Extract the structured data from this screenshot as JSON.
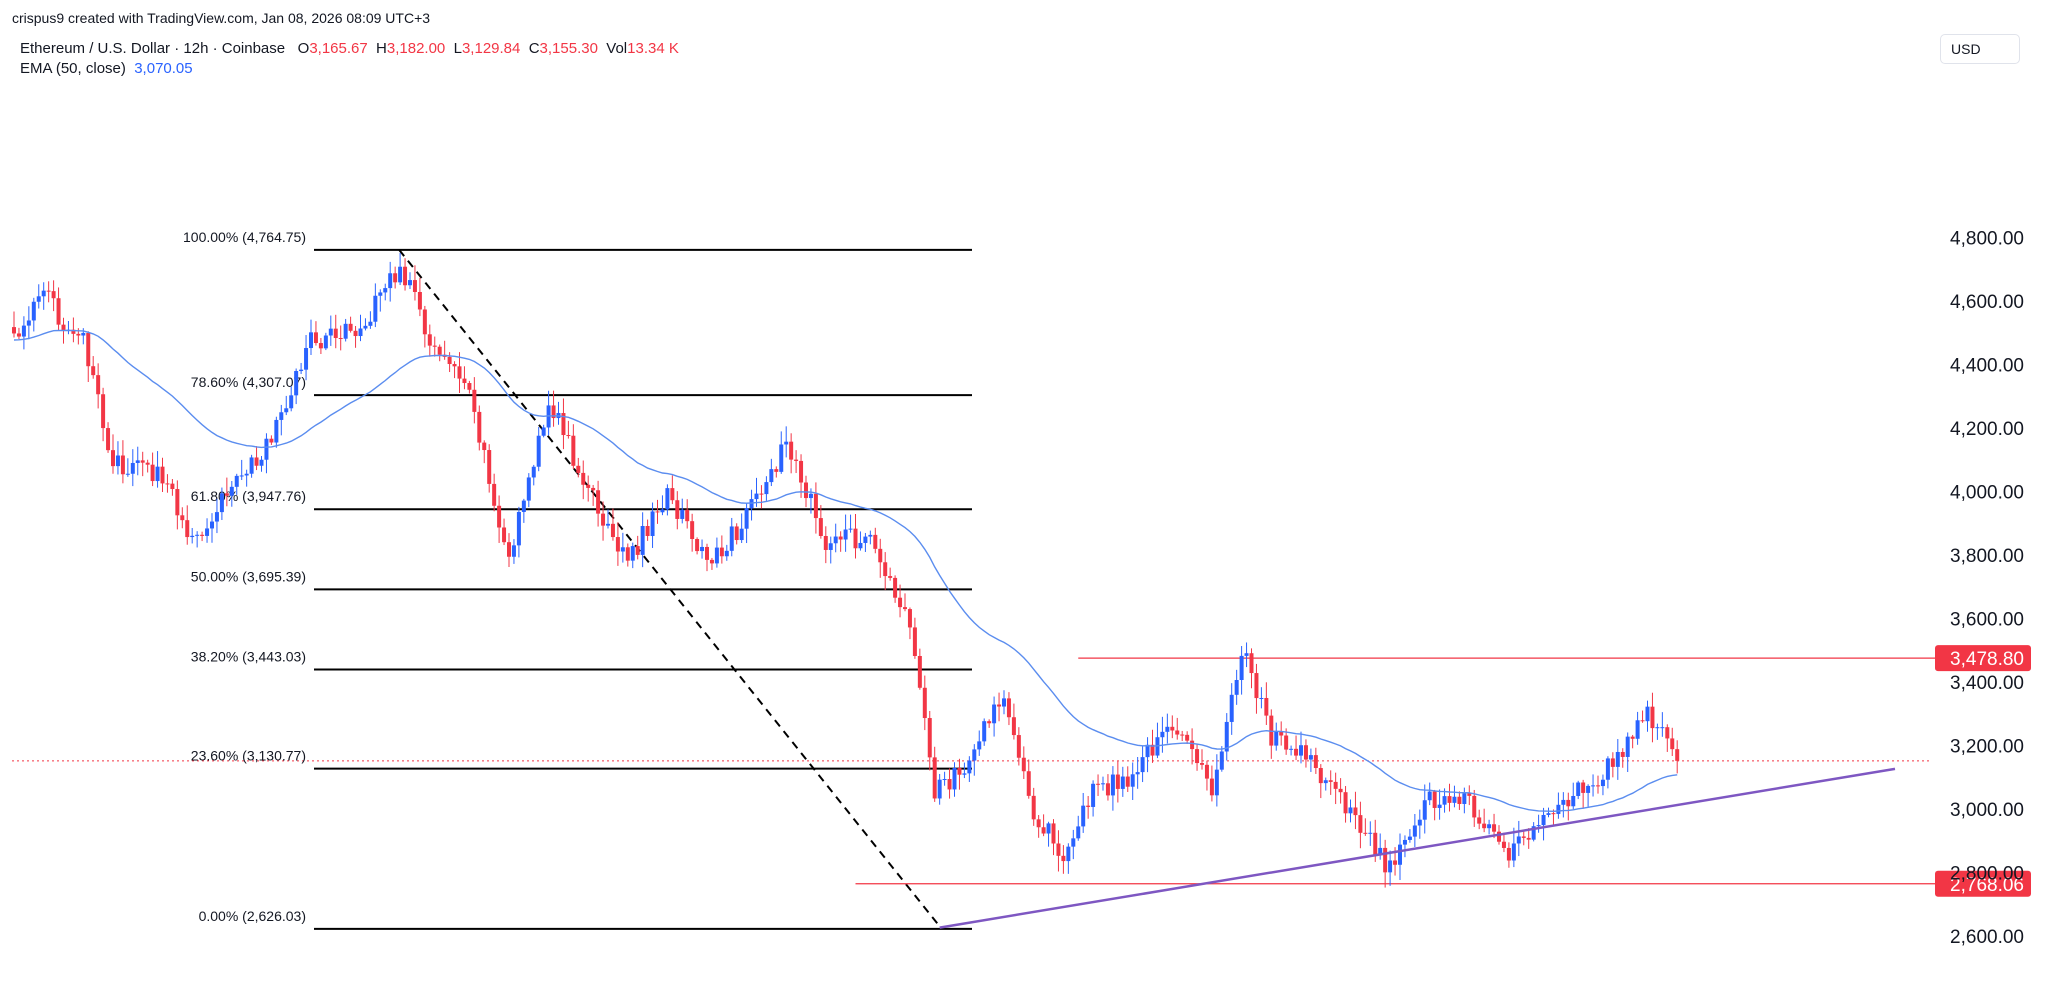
{
  "header": {
    "credit": "crispus9 created with TradingView.com, Jan 08, 2026 08:09 UTC+3",
    "symbol": "Ethereum / U.S. Dollar · 12h · Coinbase",
    "o_label": "O",
    "o_value": "3,165.67",
    "h_label": "H",
    "h_value": "3,182.00",
    "l_label": "L",
    "l_value": "3,129.84",
    "c_label": "C",
    "c_value": "3,155.30",
    "vol_label": "Vol",
    "vol_value": "13.34 K",
    "ema_label": "EMA (50, close)",
    "ema_value": "3,070.05"
  },
  "currency": "USD",
  "colors": {
    "up": "#2962ff",
    "down": "#f23645",
    "ema": "#5b8def",
    "fib": "#000000",
    "hline": "#f23645",
    "trend": "#7e57c2",
    "axis_text": "#131722"
  },
  "chart_data": {
    "type": "candlestick",
    "symbol": "ETH/USD",
    "interval": "12h",
    "ylim": [
      2550,
      4950
    ],
    "y_ticks": [
      4800,
      4600,
      4400,
      4200,
      4000,
      3800,
      3600,
      3400,
      3200,
      3000,
      2800,
      2600
    ],
    "y_tick_labels": [
      "4,800.00",
      "4,600.00",
      "4,400.00",
      "4,200.00",
      "4,000.00",
      "3,800.00",
      "3,600.00",
      "3,400.00",
      "3,200.00",
      "3,000.00",
      "2,800.00",
      "2,600.00"
    ],
    "last_price": 3155.3,
    "fib_levels": [
      {
        "label": "100.00% (4,764.75)",
        "value": 4764.75
      },
      {
        "label": "78.60% (4,307.07)",
        "value": 4307.07
      },
      {
        "label": "61.80% (3,947.76)",
        "value": 3947.76
      },
      {
        "label": "50.00% (3,695.39)",
        "value": 3695.39
      },
      {
        "label": "38.20% (3,443.03)",
        "value": 3443.03
      },
      {
        "label": "23.60% (3,130.77)",
        "value": 3130.77
      },
      {
        "label": "0.00% (2,626.03)",
        "value": 2626.03
      }
    ],
    "fib_start_index": 77,
    "fib_end_index": 187,
    "horizontal_levels": [
      {
        "value": 3478.8,
        "label": "3,478.80",
        "start_index": 215
      },
      {
        "value": 2768.06,
        "label": "2,768.06",
        "start_index": 170
      }
    ],
    "trendline": {
      "start_index": 187,
      "start_value": 2630,
      "end_index": 380,
      "end_value": 3130
    },
    "waypoints": [
      [
        0,
        4490
      ],
      [
        6,
        4620
      ],
      [
        14,
        4470
      ],
      [
        20,
        4090
      ],
      [
        30,
        4060
      ],
      [
        36,
        3850
      ],
      [
        44,
        4030
      ],
      [
        52,
        4160
      ],
      [
        60,
        4480
      ],
      [
        70,
        4520
      ],
      [
        78,
        4720
      ],
      [
        84,
        4480
      ],
      [
        92,
        4300
      ],
      [
        100,
        3780
      ],
      [
        108,
        4300
      ],
      [
        116,
        4000
      ],
      [
        124,
        3780
      ],
      [
        132,
        4000
      ],
      [
        140,
        3780
      ],
      [
        148,
        3920
      ],
      [
        156,
        4150
      ],
      [
        164,
        3850
      ],
      [
        172,
        3860
      ],
      [
        178,
        3700
      ],
      [
        182,
        3500
      ],
      [
        186,
        3050
      ],
      [
        192,
        3130
      ],
      [
        200,
        3380
      ],
      [
        206,
        3000
      ],
      [
        212,
        2860
      ],
      [
        218,
        3050
      ],
      [
        226,
        3110
      ],
      [
        234,
        3280
      ],
      [
        242,
        3060
      ],
      [
        248,
        3520
      ],
      [
        254,
        3230
      ],
      [
        262,
        3150
      ],
      [
        270,
        2980
      ],
      [
        278,
        2810
      ],
      [
        286,
        3040
      ],
      [
        294,
        3020
      ],
      [
        302,
        2870
      ],
      [
        310,
        2980
      ],
      [
        318,
        3080
      ],
      [
        326,
        3200
      ],
      [
        330,
        3310
      ],
      [
        333,
        3230
      ],
      [
        336,
        3160
      ]
    ]
  }
}
